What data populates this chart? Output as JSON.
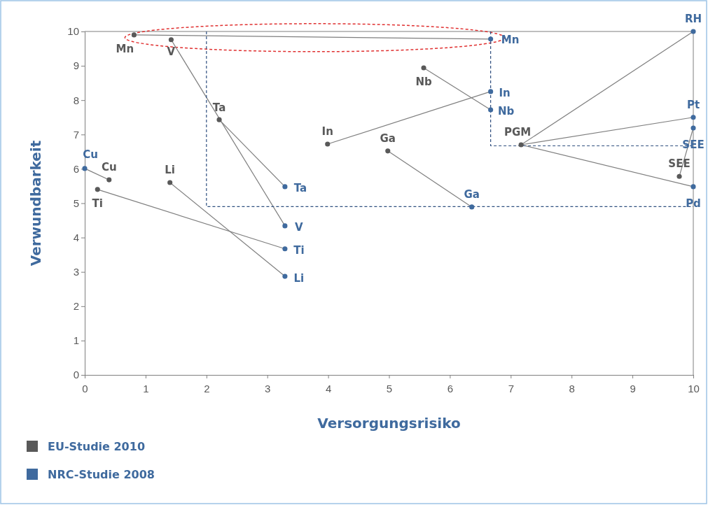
{
  "chart_data": {
    "type": "scatter",
    "xlabel": "Versorgungsrisiko",
    "ylabel": "Verwundbarkeit",
    "xlim": [
      0,
      10
    ],
    "ylim": [
      0,
      10
    ],
    "xticks": [
      0,
      1,
      2,
      3,
      4,
      5,
      6,
      7,
      8,
      9,
      10
    ],
    "yticks": [
      0,
      1,
      2,
      3,
      4,
      5,
      6,
      7,
      8,
      9,
      10
    ],
    "grid": false,
    "legend": "bottom left",
    "marker": "circle",
    "series": [
      {
        "type": "line",
        "marker": "none",
        "color": "#7f7f7f",
        "x": [
          0.81,
          6.67
        ],
        "values": [
          9.9,
          9.78
        ]
      },
      {
        "type": "line",
        "marker": "none",
        "color": "#7f7f7f",
        "x": [
          1.42,
          3.29
        ],
        "values": [
          9.76,
          4.34
        ]
      },
      {
        "type": "line",
        "marker": "none",
        "color": "#7f7f7f",
        "x": [
          2.21,
          3.29
        ],
        "values": [
          7.43,
          5.48
        ]
      },
      {
        "type": "line",
        "marker": "none",
        "color": "#7f7f7f",
        "x": [
          0.4,
          0
        ],
        "values": [
          5.68,
          6.01
        ]
      },
      {
        "type": "line",
        "marker": "none",
        "color": "#7f7f7f",
        "x": [
          0.21,
          3.29
        ],
        "values": [
          5.4,
          3.67
        ]
      },
      {
        "type": "line",
        "marker": "none",
        "color": "#7f7f7f",
        "x": [
          1.4,
          3.29
        ],
        "values": [
          5.6,
          2.87
        ]
      },
      {
        "type": "line",
        "marker": "none",
        "color": "#7f7f7f",
        "x": [
          3.99,
          6.67
        ],
        "values": [
          6.72,
          8.25
        ]
      },
      {
        "type": "line",
        "marker": "none",
        "color": "#7f7f7f",
        "x": [
          4.98,
          6.36
        ],
        "values": [
          6.52,
          4.89
        ]
      },
      {
        "type": "line",
        "marker": "none",
        "color": "#7f7f7f",
        "x": [
          5.57,
          6.67
        ],
        "values": [
          8.94,
          7.72
        ]
      },
      {
        "type": "line",
        "marker": "none",
        "color": "#7f7f7f",
        "x": [
          7.17,
          10
        ],
        "values": [
          6.7,
          10
        ]
      },
      {
        "type": "line",
        "marker": "none",
        "color": "#7f7f7f",
        "x": [
          7.17,
          10
        ],
        "values": [
          6.7,
          7.5
        ]
      },
      {
        "type": "line",
        "marker": "none",
        "color": "#7f7f7f",
        "x": [
          7.17,
          10
        ],
        "values": [
          6.7,
          5.48
        ]
      },
      {
        "type": "line",
        "marker": "none",
        "color": "#7f7f7f",
        "x": [
          9.77,
          10
        ],
        "values": [
          5.78,
          7.19
        ]
      },
      {
        "type": "line",
        "marker": "none",
        "color": "#2f4f7f",
        "line_style": "dashed",
        "x": [
          2,
          2,
          10
        ],
        "values": [
          10,
          4.9,
          4.9
        ]
      },
      {
        "type": "line",
        "marker": "none",
        "color": "#2f4f7f",
        "line_style": "dashed",
        "x": [
          6.67,
          6.67,
          10
        ],
        "values": [
          10,
          6.67,
          6.67
        ]
      },
      {
        "name": "EU-Studie 2010",
        "color": "#595959",
        "x": [
          0.81,
          1.42,
          2.21,
          0.4,
          0.21,
          1.4,
          3.99,
          4.98,
          5.57,
          7.17,
          9.77
        ],
        "values": [
          9.9,
          9.76,
          7.43,
          5.68,
          5.4,
          5.6,
          6.72,
          6.52,
          8.94,
          6.7,
          5.78
        ],
        "value_labels": [
          "Mn",
          "V",
          "Ta",
          "Cu",
          "Ti",
          "Li",
          "In",
          "Ga",
          "Nb",
          "PGM",
          "SEE"
        ]
      },
      {
        "name": "NRC-Studie 2008",
        "color": "#3f6a9e",
        "x": [
          6.67,
          3.29,
          3.29,
          3.29,
          3.29,
          0,
          6.67,
          6.67,
          6.36,
          10,
          10,
          10,
          10
        ],
        "values": [
          9.78,
          5.48,
          4.34,
          3.67,
          2.87,
          6.01,
          8.25,
          7.72,
          4.89,
          10,
          7.5,
          7.19,
          5.48
        ],
        "value_labels": [
          "Mn",
          "Ta",
          "V",
          "Ti",
          "Li",
          "Cu",
          "In",
          "Nb",
          "Ga",
          "RH",
          "Pt",
          "SEE",
          "Pd"
        ]
      }
    ]
  }
}
